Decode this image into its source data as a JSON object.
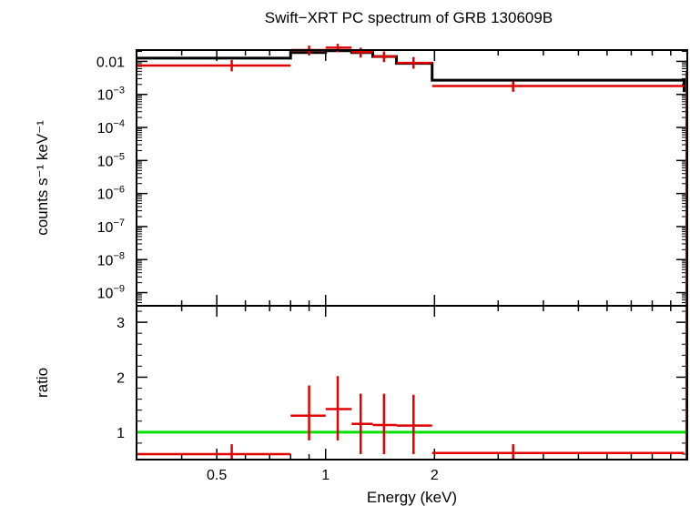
{
  "title": "Swift−XRT PC spectrum of GRB 130609B",
  "colors": {
    "data": "#e00000",
    "model": "#000000",
    "unity": "#00e000",
    "axes": "#000000"
  },
  "chart_data": [
    {
      "type": "line",
      "panel": "spectrum",
      "ylabel": "counts s⁻¹ keV⁻¹",
      "xscale": "log",
      "yscale": "log",
      "xlim": [
        0.3,
        10
      ],
      "ylim": [
        4e-10,
        0.022
      ],
      "yticks": [
        {
          "value": 0.01,
          "base": "0.01",
          "exp": ""
        },
        {
          "value": 0.001,
          "base": "10",
          "exp": "−3"
        },
        {
          "value": 0.0001,
          "base": "10",
          "exp": "−4"
        },
        {
          "value": 1e-05,
          "base": "10",
          "exp": "−5"
        },
        {
          "value": 1e-06,
          "base": "10",
          "exp": "−6"
        },
        {
          "value": 1e-07,
          "base": "10",
          "exp": "−7"
        },
        {
          "value": 1e-08,
          "base": "10",
          "exp": "−8"
        },
        {
          "value": 1e-09,
          "base": "10",
          "exp": "−9"
        }
      ],
      "data_points": [
        {
          "x": 0.55,
          "xlo": 0.3,
          "xhi": 0.8,
          "y": 0.0075,
          "ylo": 0.005,
          "yhi": 0.011
        },
        {
          "x": 0.9,
          "xlo": 0.8,
          "xhi": 1.0,
          "y": 0.022,
          "ylo": 0.016,
          "yhi": 0.03
        },
        {
          "x": 1.08,
          "xlo": 1.0,
          "xhi": 1.18,
          "y": 0.026,
          "ylo": 0.019,
          "yhi": 0.034
        },
        {
          "x": 1.25,
          "xlo": 1.18,
          "xhi": 1.35,
          "y": 0.019,
          "ylo": 0.013,
          "yhi": 0.026
        },
        {
          "x": 1.45,
          "xlo": 1.35,
          "xhi": 1.57,
          "y": 0.014,
          "ylo": 0.0095,
          "yhi": 0.02
        },
        {
          "x": 1.75,
          "xlo": 1.57,
          "xhi": 1.97,
          "y": 0.009,
          "ylo": 0.006,
          "yhi": 0.0135
        },
        {
          "x": 3.3,
          "xlo": 1.97,
          "xhi": 9.8,
          "y": 0.0018,
          "ylo": 0.0012,
          "yhi": 0.0025
        },
        {
          "x": 9.95,
          "xlo": 9.9,
          "xhi": 10.0,
          "y": 0.0035,
          "ylo": 4e-10,
          "yhi": 0.005
        }
      ],
      "model_steps": [
        {
          "xlo": 0.3,
          "xhi": 0.8,
          "y": 0.0125
        },
        {
          "xlo": 0.8,
          "xhi": 1.0,
          "y": 0.0185
        },
        {
          "xlo": 1.0,
          "xhi": 1.18,
          "y": 0.021
        },
        {
          "xlo": 1.18,
          "xhi": 1.35,
          "y": 0.0185
        },
        {
          "xlo": 1.35,
          "xhi": 1.57,
          "y": 0.014
        },
        {
          "xlo": 1.57,
          "xhi": 1.97,
          "y": 0.0087
        },
        {
          "xlo": 1.97,
          "xhi": 9.8,
          "y": 0.0027
        },
        {
          "xlo": 9.8,
          "xhi": 10.0,
          "y": 0.0013
        }
      ]
    },
    {
      "type": "scatter",
      "panel": "ratio",
      "xlabel": "Energy (keV)",
      "ylabel": "ratio",
      "xscale": "log",
      "xlim": [
        0.3,
        10
      ],
      "ylim": [
        0.5,
        3.3
      ],
      "xticks": [
        {
          "value": 0.5,
          "label": "0.5"
        },
        {
          "value": 1,
          "label": "1"
        },
        {
          "value": 2,
          "label": "2"
        }
      ],
      "yticks": [
        {
          "value": 1,
          "label": "1"
        },
        {
          "value": 2,
          "label": "2"
        },
        {
          "value": 3,
          "label": "3"
        }
      ],
      "reference_line": 1,
      "data_points": [
        {
          "x": 0.55,
          "xlo": 0.3,
          "xhi": 0.8,
          "y": 0.6,
          "ylo": 0.48,
          "yhi": 0.78
        },
        {
          "x": 0.9,
          "xlo": 0.8,
          "xhi": 1.0,
          "y": 1.3,
          "ylo": 0.85,
          "yhi": 1.85
        },
        {
          "x": 1.08,
          "xlo": 1.0,
          "xhi": 1.18,
          "y": 1.42,
          "ylo": 0.85,
          "yhi": 2.02
        },
        {
          "x": 1.25,
          "xlo": 1.18,
          "xhi": 1.35,
          "y": 1.15,
          "ylo": 0.6,
          "yhi": 1.7
        },
        {
          "x": 1.45,
          "xlo": 1.35,
          "xhi": 1.57,
          "y": 1.13,
          "ylo": 0.6,
          "yhi": 1.7
        },
        {
          "x": 1.75,
          "xlo": 1.57,
          "xhi": 1.97,
          "y": 1.12,
          "ylo": 0.6,
          "yhi": 1.68
        },
        {
          "x": 3.3,
          "xlo": 1.97,
          "xhi": 9.8,
          "y": 0.62,
          "ylo": 0.5,
          "yhi": 0.78
        },
        {
          "x": 9.95,
          "xlo": 9.9,
          "xhi": 10.0,
          "y": 2.35,
          "ylo": 0.5,
          "yhi": 3.3
        }
      ]
    }
  ]
}
